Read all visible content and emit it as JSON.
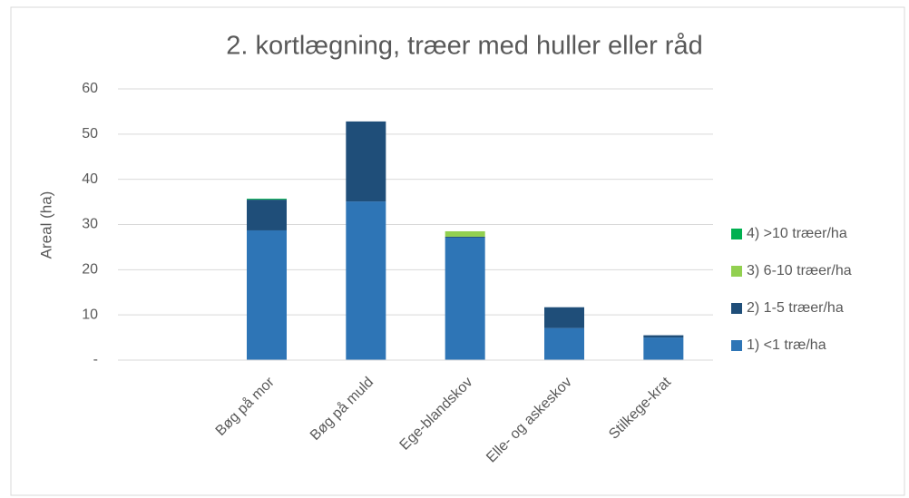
{
  "chart_data": {
    "type": "stacked_bar",
    "title": "2. kortlægning, træer med huller eller råd",
    "y_label": "Areal (ha)",
    "categories": [
      null,
      "Bøg på mor",
      "Bøg på muld",
      "Ege-blandskov",
      "Elle- og askeskov",
      "Stilkege-krat"
    ],
    "series": [
      {
        "name": "1) <1 træ/ha",
        "color": "#2e75b6",
        "values": [
          0,
          28.7,
          35.1,
          27.1,
          7.1,
          5.0
        ]
      },
      {
        "name": "2) 1-5 træer/ha",
        "color": "#1f4e79",
        "values": [
          0,
          6.8,
          17.7,
          0.2,
          4.6,
          0.5
        ]
      },
      {
        "name": "3) 6-10 træer/ha",
        "color": "#92d050",
        "values": [
          0,
          0,
          0,
          1.2,
          0,
          0
        ]
      },
      {
        "name": "4) >10 træer/ha",
        "color": "#00b050",
        "values": [
          0,
          0.2,
          0,
          0,
          0,
          0
        ]
      }
    ],
    "ylim": [
      0,
      60
    ],
    "yticks": [
      {
        "value": 0,
        "label": "-"
      },
      10,
      20,
      30,
      40,
      50,
      60
    ],
    "grid": true,
    "legend": "right"
  }
}
